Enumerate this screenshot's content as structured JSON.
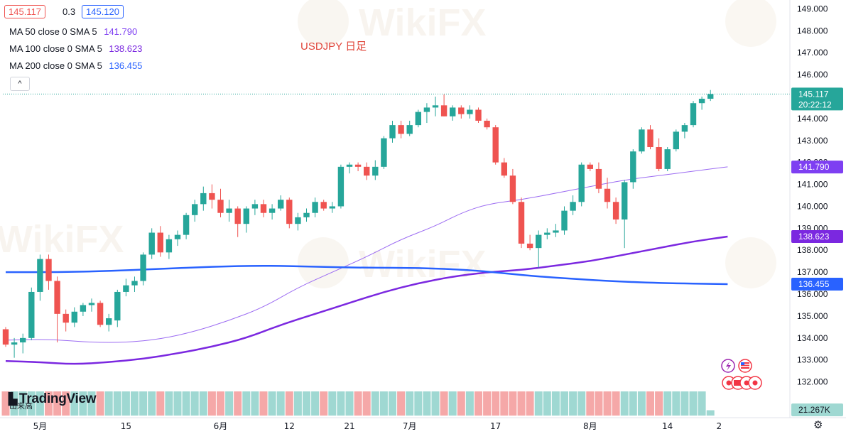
{
  "header": {
    "bid": "145.117",
    "spread": "0.3",
    "ask": "145.120",
    "ma_lines": [
      {
        "label": "MA 50 close 0 SMA 5",
        "value": "141.790",
        "color": "#7e3ff2"
      },
      {
        "label": "MA 100 close 0 SMA 5",
        "value": "138.623",
        "color": "#7b28e0"
      },
      {
        "label": "MA 200 close 0 SMA 5",
        "value": "136.455",
        "color": "#2962ff"
      }
    ],
    "collapse_label": "^"
  },
  "volume": {
    "label": "出来高",
    "last": "21.267K"
  },
  "logo": "TradingView",
  "colors": {
    "up": "#26a69a",
    "down": "#ef5350",
    "up_vol": "#9fd8d2",
    "down_vol": "#f5a8a8",
    "price_line": "#26a69a"
  },
  "chart_data": {
    "type": "candlestick",
    "title": "USDJPY 日足",
    "y_ticks": [
      "149.000",
      "148.000",
      "147.000",
      "146.000",
      "145.000",
      "144.000",
      "143.000",
      "142.000",
      "141.000",
      "140.000",
      "139.000",
      "138.000",
      "137.000",
      "136.000",
      "135.000",
      "134.000",
      "133.000",
      "132.000"
    ],
    "y_range": [
      131.6,
      149.4
    ],
    "x_ticks": [
      {
        "label": "5月",
        "index": 4
      },
      {
        "label": "15",
        "index": 14
      },
      {
        "label": "6月",
        "index": 25
      },
      {
        "label": "12",
        "index": 33
      },
      {
        "label": "21",
        "index": 40
      },
      {
        "label": "7月",
        "index": 47
      },
      {
        "label": "17",
        "index": 57
      },
      {
        "label": "8月",
        "index": 68
      },
      {
        "label": "14",
        "index": 77
      },
      {
        "label": "2",
        "index": 83
      }
    ],
    "last_price": "145.117",
    "countdown": "20:22:12",
    "candles": [
      [
        134.4,
        134.5,
        133.6,
        133.7
      ],
      [
        133.7,
        134.0,
        133.1,
        133.8
      ],
      [
        133.8,
        134.2,
        133.3,
        134.0
      ],
      [
        134.0,
        136.3,
        133.9,
        136.1
      ],
      [
        136.1,
        137.8,
        135.7,
        137.6
      ],
      [
        137.6,
        137.8,
        136.2,
        136.6
      ],
      [
        136.6,
        136.8,
        133.8,
        135.1
      ],
      [
        135.1,
        135.3,
        134.3,
        134.7
      ],
      [
        134.7,
        135.4,
        134.5,
        135.2
      ],
      [
        135.2,
        135.6,
        135.0,
        135.5
      ],
      [
        135.5,
        135.8,
        135.2,
        135.6
      ],
      [
        135.6,
        135.7,
        134.5,
        134.6
      ],
      [
        134.6,
        135.1,
        134.3,
        134.9
      ],
      [
        134.8,
        136.2,
        134.5,
        136.1
      ],
      [
        136.1,
        136.7,
        135.9,
        136.4
      ],
      [
        136.4,
        136.8,
        136.1,
        136.6
      ],
      [
        136.6,
        137.9,
        136.4,
        137.8
      ],
      [
        137.8,
        139.0,
        137.6,
        138.8
      ],
      [
        138.8,
        139.1,
        137.7,
        137.9
      ],
      [
        137.9,
        138.7,
        137.6,
        138.5
      ],
      [
        138.5,
        138.9,
        138.2,
        138.7
      ],
      [
        138.7,
        139.7,
        138.5,
        139.6
      ],
      [
        139.6,
        140.3,
        139.3,
        140.1
      ],
      [
        140.1,
        140.9,
        139.8,
        140.6
      ],
      [
        140.6,
        141.0,
        139.9,
        140.3
      ],
      [
        140.3,
        140.8,
        139.5,
        139.7
      ],
      [
        139.7,
        140.3,
        139.3,
        139.9
      ],
      [
        139.9,
        140.0,
        138.6,
        139.2
      ],
      [
        139.2,
        140.0,
        138.8,
        139.9
      ],
      [
        139.9,
        140.3,
        139.6,
        140.1
      ],
      [
        140.1,
        140.3,
        139.5,
        139.7
      ],
      [
        139.7,
        140.1,
        139.4,
        139.9
      ],
      [
        139.9,
        140.5,
        139.8,
        140.3
      ],
      [
        140.3,
        140.4,
        139.0,
        139.2
      ],
      [
        139.2,
        139.7,
        138.9,
        139.5
      ],
      [
        139.5,
        139.9,
        139.3,
        139.7
      ],
      [
        139.7,
        140.4,
        139.5,
        140.2
      ],
      [
        140.2,
        140.3,
        139.8,
        139.9
      ],
      [
        139.9,
        140.2,
        139.7,
        140.0
      ],
      [
        140.0,
        141.9,
        139.9,
        141.8
      ],
      [
        141.8,
        142.0,
        141.5,
        141.9
      ],
      [
        141.9,
        142.0,
        141.6,
        141.8
      ],
      [
        141.8,
        142.0,
        141.2,
        141.4
      ],
      [
        141.4,
        142.1,
        141.2,
        141.8
      ],
      [
        141.8,
        143.2,
        141.7,
        143.1
      ],
      [
        143.1,
        143.9,
        142.9,
        143.7
      ],
      [
        143.7,
        143.9,
        143.1,
        143.3
      ],
      [
        143.3,
        143.9,
        143.2,
        143.7
      ],
      [
        143.7,
        144.4,
        143.6,
        144.3
      ],
      [
        144.3,
        144.7,
        143.8,
        144.5
      ],
      [
        144.5,
        145.0,
        144.1,
        144.6
      ],
      [
        144.6,
        145.1,
        144.1,
        144.1
      ],
      [
        144.1,
        144.6,
        143.9,
        144.5
      ],
      [
        144.5,
        144.6,
        144.0,
        144.2
      ],
      [
        144.2,
        144.6,
        144.0,
        144.4
      ],
      [
        144.4,
        144.5,
        143.8,
        143.9
      ],
      [
        143.9,
        144.0,
        143.5,
        143.6
      ],
      [
        143.6,
        143.7,
        141.9,
        142.0
      ],
      [
        142.0,
        142.2,
        141.3,
        141.4
      ],
      [
        141.4,
        141.7,
        140.1,
        140.2
      ],
      [
        140.2,
        140.4,
        138.1,
        138.3
      ],
      [
        138.3,
        138.7,
        138.0,
        138.1
      ],
      [
        138.1,
        138.9,
        137.2,
        138.7
      ],
      [
        138.7,
        139.0,
        138.5,
        138.8
      ],
      [
        138.8,
        139.2,
        138.6,
        138.9
      ],
      [
        138.9,
        140.0,
        138.7,
        139.8
      ],
      [
        139.8,
        140.5,
        139.6,
        140.2
      ],
      [
        140.2,
        142.0,
        140.0,
        141.9
      ],
      [
        141.9,
        142.0,
        141.6,
        141.7
      ],
      [
        141.7,
        142.0,
        140.6,
        140.8
      ],
      [
        140.8,
        141.3,
        139.9,
        140.2
      ],
      [
        140.2,
        140.4,
        139.2,
        139.4
      ],
      [
        139.4,
        141.2,
        138.1,
        141.1
      ],
      [
        141.1,
        142.6,
        140.8,
        142.5
      ],
      [
        142.5,
        143.6,
        142.4,
        143.5
      ],
      [
        143.5,
        143.7,
        142.6,
        142.7
      ],
      [
        142.7,
        143.1,
        141.6,
        141.7
      ],
      [
        141.7,
        142.7,
        141.6,
        142.6
      ],
      [
        142.6,
        143.5,
        142.5,
        143.4
      ],
      [
        143.4,
        143.8,
        143.1,
        143.7
      ],
      [
        143.7,
        144.8,
        143.6,
        144.7
      ],
      [
        144.7,
        145.0,
        144.4,
        144.9
      ],
      [
        144.9,
        145.3,
        144.8,
        145.117
      ]
    ],
    "moving_averages": [
      {
        "name": "MA 50",
        "color": "#9c6cf2",
        "width": 1,
        "points": [
          [
            0,
            133.9
          ],
          [
            5,
            133.95
          ],
          [
            10,
            133.8
          ],
          [
            14,
            133.8
          ],
          [
            18,
            133.95
          ],
          [
            22,
            134.3
          ],
          [
            26,
            134.8
          ],
          [
            30,
            135.4
          ],
          [
            34,
            136.3
          ],
          [
            38,
            137.0
          ],
          [
            42,
            137.7
          ],
          [
            46,
            138.5
          ],
          [
            50,
            139.1
          ],
          [
            53,
            139.7
          ],
          [
            56,
            140.1
          ],
          [
            60,
            140.3
          ],
          [
            64,
            140.6
          ],
          [
            68,
            140.9
          ],
          [
            72,
            141.2
          ],
          [
            76,
            141.4
          ],
          [
            80,
            141.6
          ],
          [
            84,
            141.8
          ]
        ]
      },
      {
        "name": "MA 100",
        "color": "#7b28e0",
        "width": 2.5,
        "points": [
          [
            0,
            132.95
          ],
          [
            4,
            132.9
          ],
          [
            8,
            132.8
          ],
          [
            12,
            132.9
          ],
          [
            16,
            133.05
          ],
          [
            20,
            133.3
          ],
          [
            24,
            133.6
          ],
          [
            28,
            134.0
          ],
          [
            32,
            134.6
          ],
          [
            36,
            135.1
          ],
          [
            40,
            135.6
          ],
          [
            44,
            136.1
          ],
          [
            48,
            136.5
          ],
          [
            52,
            136.8
          ],
          [
            56,
            137.0
          ],
          [
            60,
            137.1
          ],
          [
            64,
            137.3
          ],
          [
            68,
            137.5
          ],
          [
            72,
            137.8
          ],
          [
            76,
            138.1
          ],
          [
            80,
            138.4
          ],
          [
            84,
            138.623
          ]
        ]
      },
      {
        "name": "MA 200",
        "color": "#2962ff",
        "width": 2.5,
        "points": [
          [
            0,
            137.0
          ],
          [
            6,
            137.0
          ],
          [
            12,
            137.05
          ],
          [
            18,
            137.15
          ],
          [
            24,
            137.25
          ],
          [
            30,
            137.3
          ],
          [
            36,
            137.25
          ],
          [
            42,
            137.2
          ],
          [
            48,
            137.2
          ],
          [
            54,
            137.1
          ],
          [
            58,
            136.95
          ],
          [
            62,
            136.8
          ],
          [
            66,
            136.7
          ],
          [
            70,
            136.6
          ],
          [
            76,
            136.5
          ],
          [
            84,
            136.455
          ]
        ]
      }
    ],
    "volume": [
      "d",
      "u",
      "u",
      "u",
      "u",
      "d",
      "d",
      "d",
      "u",
      "u",
      "u",
      "d",
      "u",
      "u",
      "u",
      "u",
      "u",
      "u",
      "d",
      "u",
      "u",
      "u",
      "u",
      "u",
      "d",
      "d",
      "u",
      "d",
      "u",
      "u",
      "d",
      "u",
      "u",
      "d",
      "u",
      "u",
      "u",
      "d",
      "u",
      "u",
      "u",
      "d",
      "d",
      "u",
      "u",
      "u",
      "d",
      "u",
      "u",
      "u",
      "u",
      "d",
      "u",
      "d",
      "u",
      "d",
      "d",
      "d",
      "d",
      "d",
      "d",
      "d",
      "u",
      "u",
      "u",
      "u",
      "u",
      "u",
      "d",
      "d",
      "d",
      "d",
      "u",
      "u",
      "u",
      "d",
      "d",
      "u",
      "u",
      "u",
      "u",
      "u",
      "u"
    ]
  },
  "events": {
    "lightning_icon": "lightning-event-icon",
    "flag_icon": "us-flag-icon"
  }
}
